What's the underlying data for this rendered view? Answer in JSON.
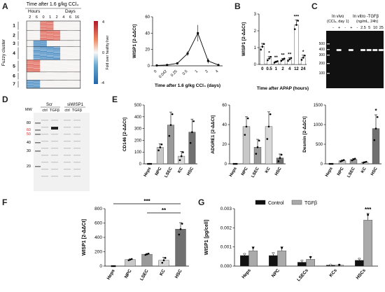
{
  "panels": {
    "A": {
      "letter": "A",
      "heatmap_title": "Time after 1.6 g/kg CCl₄",
      "hours_label": "Hours",
      "days_label": "Days",
      "time_ticks": [
        "2",
        "6",
        "0",
        "1",
        "2",
        "4",
        "6",
        "16"
      ],
      "cluster_axis_label": "Fuzzy cluster",
      "cluster_ids": [
        "1",
        "2",
        "3",
        "4",
        "5",
        "6",
        "7"
      ],
      "colorbar_label": "Fold over healthy liver",
      "colorbar_ticks": [
        "4",
        "0",
        "-4"
      ],
      "line_ylabel": "WISP1 [2^-ΔΔCt]",
      "line_xlabel": "Time after 1.6 g/kg CCl₄ (days)"
    },
    "B": {
      "letter": "B",
      "ylabel": "WISP1 [2^-ΔΔCt]",
      "xlabel": "Time after APAP (hours)",
      "sig": [
        "*",
        "**",
        "**",
        "**",
        "***",
        "*"
      ]
    },
    "C": {
      "letter": "C",
      "label_left": "In vivo",
      "label_left_sub": "(CCl₄, day 1)",
      "label_right": "In vitro -TGFβ",
      "label_right_sub": "(ng/mL, 24h)",
      "lanes": [
        "-",
        "+",
        "-",
        "+",
        "-",
        "2.5",
        "5",
        "10",
        "25"
      ],
      "markers": [
        "500",
        "400",
        "300",
        "200",
        "100"
      ]
    },
    "D": {
      "letter": "D",
      "mw": "MW",
      "group1": "Scr",
      "group2": "siWISP1",
      "lanes": [
        "ctrl",
        "TGFβ",
        "ctrl",
        "TGFβ"
      ],
      "markers": [
        "80",
        "60",
        "50",
        "40",
        "30",
        "20"
      ]
    },
    "E": {
      "letter": "E",
      "sig": "*"
    },
    "F": {
      "letter": "F",
      "sig1": "***",
      "sig2": "**"
    },
    "G": {
      "letter": "G",
      "legend": [
        "Control",
        "TGFβ"
      ],
      "sig": "***"
    }
  },
  "chart_data": [
    {
      "id": "A-line",
      "type": "line",
      "x": [
        "0",
        "0.042",
        "0.25",
        "0.5",
        "1",
        "2",
        "4"
      ],
      "values": [
        0.5,
        1,
        3,
        15,
        40,
        6,
        1
      ],
      "errors": [
        0,
        0,
        0,
        3,
        10,
        3,
        0
      ],
      "ylim": [
        0,
        60
      ],
      "yticks": [
        "0",
        "20",
        "40",
        "60"
      ],
      "ylabel": "WISP1 [2^-ΔΔCt]",
      "xlabel": "Time after 1.6 g/kg CCl₄ (days)"
    },
    {
      "id": "B",
      "type": "bar",
      "categories": [
        "0",
        "0.5",
        "1",
        "2",
        "4",
        "12",
        "24"
      ],
      "values": [
        1.05,
        0.35,
        0.15,
        0.28,
        0.3,
        2.35,
        0.4
      ],
      "errors": [
        0.2,
        0.12,
        0.05,
        0.08,
        0.1,
        0.3,
        0.15
      ],
      "ylim": [
        0,
        3
      ],
      "yticks": [
        "0",
        "1",
        "2",
        "3"
      ],
      "ylabel": "WISP1 [2^-ΔΔCt]",
      "xlabel": "Time after APAP (hours)"
    },
    {
      "id": "E1",
      "type": "bar",
      "categories": [
        "Heps",
        "NPC",
        "LSEC",
        "KC",
        "HSC"
      ],
      "values": [
        0,
        140,
        330,
        65,
        270
      ],
      "errors": [
        0,
        30,
        110,
        40,
        110
      ],
      "ylim": [
        0,
        500
      ],
      "yticks": [
        "0",
        "100",
        "200",
        "300",
        "400",
        "500"
      ],
      "ylabel": "CD146 [2^-ΔΔCt]"
    },
    {
      "id": "E2",
      "type": "bar",
      "categories": [
        "Heps",
        "NPC",
        "LSEC",
        "KC",
        "HSC"
      ],
      "values": [
        0,
        38,
        17,
        38,
        6
      ],
      "errors": [
        0,
        10,
        8,
        15,
        4
      ],
      "ylim": [
        0,
        60
      ],
      "yticks": [
        "0",
        "20",
        "40",
        "60"
      ],
      "ylabel": "ADGRE1 [2^-ΔΔCt]"
    },
    {
      "id": "E3",
      "type": "bar",
      "categories": [
        "Heps",
        "NPC",
        "LSEC",
        "KC",
        "HSC"
      ],
      "values": [
        0,
        80,
        110,
        40,
        900
      ],
      "errors": [
        0,
        20,
        25,
        15,
        350
      ],
      "ylim": [
        0,
        1500
      ],
      "yticks": [
        "0",
        "500",
        "1000",
        "1500"
      ],
      "ylabel": "Desmin [2^-ΔΔCt]"
    },
    {
      "id": "F",
      "type": "bar",
      "categories": [
        "Heps",
        "NPC",
        "LSEC",
        "KC",
        "HSC"
      ],
      "values": [
        0,
        90,
        165,
        80,
        515
      ],
      "errors": [
        0,
        10,
        10,
        40,
        90
      ],
      "ylim": [
        0,
        800
      ],
      "yticks": [
        "0",
        "200",
        "400",
        "600",
        "800"
      ],
      "ylabel": "WISP1 [2^-ΔΔCt]"
    },
    {
      "id": "G",
      "type": "bar",
      "categories": [
        "Heps",
        "NPC",
        "LSECs",
        "KCs",
        "HSCs"
      ],
      "series": [
        {
          "name": "Control",
          "values": [
            0.00055,
            0.00055,
            0.0002,
            5e-05,
            0.0003
          ],
          "errors": [
            0.0001,
            0.00015,
            0.0001,
            2e-05,
            0.0001
          ]
        },
        {
          "name": "TGFβ",
          "values": [
            0.0008,
            0.0008,
            0.00035,
            5e-05,
            0.0024
          ],
          "errors": [
            0.0002,
            0.0002,
            0.00015,
            2e-05,
            0.00035
          ]
        }
      ],
      "ylim": [
        0,
        0.003
      ],
      "yticks": [
        "0.000",
        "0.001",
        "0.002",
        "0.003"
      ],
      "ylabel": "WISP1 [pg/cell]"
    }
  ]
}
